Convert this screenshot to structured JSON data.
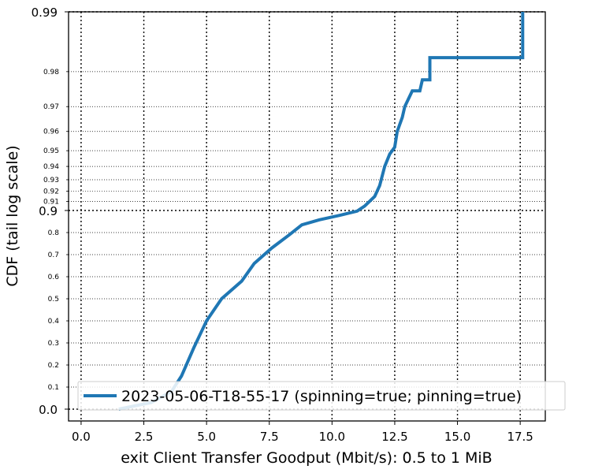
{
  "chart_data": {
    "type": "line",
    "title": "",
    "xlabel": "exit Client Transfer Goodput (Mbit/s): 0.5 to 1 MiB",
    "ylabel": "CDF (tail log scale)",
    "xlim": [
      -0.5,
      18.5
    ],
    "x_ticks": [
      "0.0",
      "2.5",
      "5.0",
      "7.5",
      "10.0",
      "12.5",
      "15.0",
      "17.5"
    ],
    "y_ticks_major": [
      "0.0",
      "0.9",
      "0.99"
    ],
    "y_ticks_minor": [
      "0.1",
      "0.2",
      "0.3",
      "0.4",
      "0.5",
      "0.6",
      "0.7",
      "0.8",
      "0.91",
      "0.92",
      "0.93",
      "0.94",
      "0.95",
      "0.96",
      "0.97",
      "0.98"
    ],
    "y_scale": "tail log (linear below 0.9, log-tail above)",
    "grid": true,
    "legend_position": "bottom-right",
    "series": [
      {
        "name": "2023-05-06-T18-55-17 (spinning=true; pinning=true)",
        "color": "#1f77b4",
        "points": [
          [
            1.5,
            0.0
          ],
          [
            2.8,
            0.03
          ],
          [
            3.6,
            0.08
          ],
          [
            4.0,
            0.15
          ],
          [
            4.5,
            0.28
          ],
          [
            5.0,
            0.4
          ],
          [
            5.6,
            0.5
          ],
          [
            6.4,
            0.58
          ],
          [
            6.9,
            0.66
          ],
          [
            7.6,
            0.73
          ],
          [
            8.3,
            0.79
          ],
          [
            8.8,
            0.835
          ],
          [
            9.5,
            0.858
          ],
          [
            10.3,
            0.878
          ],
          [
            11.0,
            0.897
          ],
          [
            11.3,
            0.905
          ],
          [
            11.7,
            0.915
          ],
          [
            11.9,
            0.925
          ],
          [
            12.1,
            0.94
          ],
          [
            12.3,
            0.948
          ],
          [
            12.5,
            0.952
          ],
          [
            12.6,
            0.96
          ],
          [
            12.8,
            0.966
          ],
          [
            12.9,
            0.97
          ],
          [
            13.2,
            0.975
          ],
          [
            13.5,
            0.975
          ],
          [
            13.6,
            0.978
          ],
          [
            13.9,
            0.978
          ],
          [
            13.9,
            0.983
          ],
          [
            17.6,
            0.983
          ],
          [
            17.6,
            0.99
          ]
        ]
      }
    ]
  }
}
